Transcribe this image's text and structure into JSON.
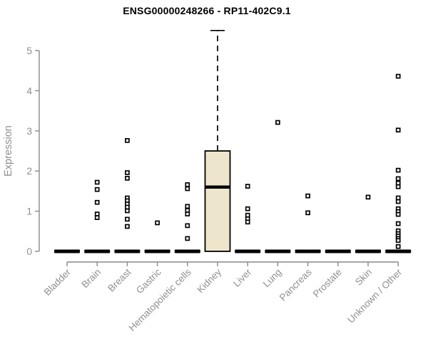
{
  "title": "ENSG00000248266 - RP11-402C9.1",
  "chart_data": {
    "type": "boxplot",
    "title": "ENSG00000248266 - RP11-402C9.1",
    "xlabel": "",
    "ylabel": "Expression",
    "ylim": [
      0,
      5.5
    ],
    "yticks": [
      0,
      1,
      2,
      3,
      4,
      5
    ],
    "grid": false,
    "legend_position": "none",
    "categories": [
      "Bladder",
      "Brain",
      "Breast",
      "Gastric",
      "Hematopoietic cells",
      "Kidney",
      "Liver",
      "Lung",
      "Pancreas",
      "Prostate",
      "Skin",
      "Unknown / Other"
    ],
    "boxes": [
      {
        "category": "Bladder",
        "q1": 0,
        "median": 0,
        "q3": 0,
        "whisker_low": 0,
        "whisker_high": 0,
        "outliers": []
      },
      {
        "category": "Brain",
        "q1": 0,
        "median": 0,
        "q3": 0,
        "whisker_low": 0,
        "whisker_high": 0,
        "outliers": [
          1.72,
          1.54,
          1.22,
          0.93,
          0.84
        ]
      },
      {
        "category": "Breast",
        "q1": 0,
        "median": 0,
        "q3": 0,
        "whisker_low": 0,
        "whisker_high": 0,
        "outliers": [
          2.76,
          1.96,
          1.82,
          1.33,
          1.26,
          1.18,
          1.1,
          1.01,
          0.8,
          0.62
        ]
      },
      {
        "category": "Gastric",
        "q1": 0,
        "median": 0,
        "q3": 0,
        "whisker_low": 0,
        "whisker_high": 0,
        "outliers": [
          0.71
        ]
      },
      {
        "category": "Hematopoietic cells",
        "q1": 0,
        "median": 0,
        "q3": 0,
        "whisker_low": 0,
        "whisker_high": 0,
        "outliers": [
          1.66,
          1.56,
          1.12,
          1.02,
          0.93,
          0.64,
          0.32
        ]
      },
      {
        "category": "Kidney",
        "q1": 0,
        "median": 1.6,
        "q3": 2.5,
        "whisker_low": 0,
        "whisker_high": 5.5,
        "outliers": []
      },
      {
        "category": "Liver",
        "q1": 0,
        "median": 0,
        "q3": 0,
        "whisker_low": 0,
        "whisker_high": 0,
        "outliers": [
          1.62,
          1.06,
          0.9,
          0.81,
          0.73
        ]
      },
      {
        "category": "Lung",
        "q1": 0,
        "median": 0,
        "q3": 0,
        "whisker_low": 0,
        "whisker_high": 0,
        "outliers": [
          3.21
        ]
      },
      {
        "category": "Pancreas",
        "q1": 0,
        "median": 0,
        "q3": 0,
        "whisker_low": 0,
        "whisker_high": 0,
        "outliers": [
          1.38,
          0.96
        ]
      },
      {
        "category": "Prostate",
        "q1": 0,
        "median": 0,
        "q3": 0,
        "whisker_low": 0,
        "whisker_high": 0,
        "outliers": []
      },
      {
        "category": "Skin",
        "q1": 0,
        "median": 0,
        "q3": 0,
        "whisker_low": 0,
        "whisker_high": 0,
        "outliers": [
          1.35
        ]
      },
      {
        "category": "Unknown / Other",
        "q1": 0,
        "median": 0,
        "q3": 0,
        "whisker_low": 0,
        "whisker_high": 0,
        "outliers": [
          4.36,
          3.02,
          2.02,
          1.81,
          1.7,
          1.61,
          1.33,
          1.24,
          1.06,
          0.99,
          0.92,
          0.69,
          0.51,
          0.44,
          0.38,
          0.32,
          0.27,
          0.12
        ]
      }
    ],
    "colors": {
      "box_fill": "#ede6cc",
      "box_border": "#000000",
      "median": "#000000",
      "outlier_stroke": "#000000",
      "outlier_fill": "#ffffff",
      "zero_bar": "#000000",
      "axis": "#87898b",
      "tick_label": "#8d9093",
      "title": "#000000"
    }
  }
}
